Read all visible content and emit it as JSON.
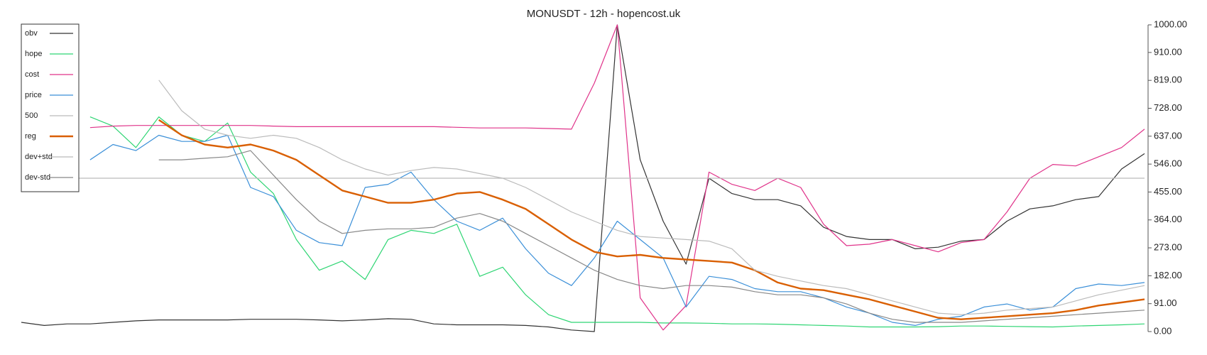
{
  "chart_data": {
    "type": "line",
    "title": "MONUSDT - 12h - hopencost.uk",
    "ylim": [
      0,
      1000
    ],
    "yticks": [
      {
        "value": 0,
        "label": "0.00"
      },
      {
        "value": 91,
        "label": "91.00"
      },
      {
        "value": 182,
        "label": "182.00"
      },
      {
        "value": 273,
        "label": "273.00"
      },
      {
        "value": 364,
        "label": "364.00"
      },
      {
        "value": 455,
        "label": "455.00"
      },
      {
        "value": 546,
        "label": "546.00"
      },
      {
        "value": 637,
        "label": "637.00"
      },
      {
        "value": 728,
        "label": "728.00"
      },
      {
        "value": 819,
        "label": "819.00"
      },
      {
        "value": 910,
        "label": "910.00"
      },
      {
        "value": 1000,
        "label": "1000.00"
      }
    ],
    "legend": "upper left",
    "series": [
      {
        "name": "obv",
        "color": "#333333",
        "values": [
          30,
          20,
          25,
          25,
          30,
          35,
          38,
          38,
          38,
          38,
          40,
          40,
          40,
          38,
          35,
          38,
          42,
          40,
          25,
          22,
          22,
          22,
          20,
          15,
          5,
          0,
          1000,
          560,
          360,
          220,
          500,
          450,
          430,
          430,
          410,
          340,
          310,
          300,
          300,
          270,
          275,
          295,
          300,
          360,
          400,
          410,
          430,
          440,
          530,
          580
        ]
      },
      {
        "name": "hope",
        "color": "#2ed573",
        "values": [
          null,
          null,
          null,
          700,
          670,
          600,
          700,
          640,
          620,
          680,
          520,
          450,
          300,
          200,
          230,
          170,
          300,
          330,
          320,
          350,
          180,
          210,
          120,
          55,
          30,
          30,
          30,
          30,
          28,
          28,
          27,
          25,
          25,
          24,
          22,
          20,
          18,
          15,
          15,
          15,
          16,
          18,
          18,
          17,
          16,
          15,
          18,
          20,
          22,
          25
        ]
      },
      {
        "name": "cost",
        "color": "#e0338a",
        "values": [
          null,
          null,
          null,
          665,
          670,
          672,
          672,
          672,
          672,
          672,
          672,
          670,
          668,
          668,
          668,
          668,
          668,
          668,
          668,
          666,
          664,
          664,
          664,
          662,
          660,
          810,
          1000,
          110,
          5,
          85,
          520,
          480,
          460,
          500,
          470,
          350,
          280,
          285,
          300,
          280,
          260,
          290,
          300,
          390,
          500,
          545,
          540,
          570,
          600,
          660
        ]
      },
      {
        "name": "price",
        "color": "#3a8fd8",
        "values": [
          null,
          null,
          null,
          560,
          610,
          590,
          640,
          620,
          620,
          640,
          470,
          440,
          330,
          290,
          280,
          470,
          480,
          520,
          430,
          360,
          330,
          370,
          270,
          190,
          150,
          240,
          360,
          300,
          240,
          80,
          180,
          170,
          140,
          130,
          130,
          110,
          80,
          60,
          30,
          20,
          40,
          50,
          80,
          90,
          70,
          80,
          140,
          155,
          150,
          160
        ]
      },
      {
        "name": "500",
        "color": "#bbbbbb",
        "values": [
          500,
          500,
          500,
          500,
          500,
          500,
          500,
          500,
          500,
          500,
          500,
          500,
          500,
          500,
          500,
          500,
          500,
          500,
          500,
          500,
          500,
          500,
          500,
          500,
          500,
          500,
          500,
          500,
          500,
          500,
          500,
          500,
          500,
          500,
          500,
          500,
          500,
          500,
          500,
          500,
          500,
          500,
          500,
          500,
          500,
          500,
          500,
          500,
          500,
          500
        ]
      },
      {
        "name": "reg",
        "color": "#d95f02",
        "values": [
          null,
          null,
          null,
          null,
          null,
          null,
          690,
          640,
          610,
          600,
          610,
          590,
          560,
          510,
          460,
          440,
          420,
          420,
          430,
          450,
          455,
          430,
          400,
          350,
          300,
          260,
          245,
          250,
          240,
          235,
          230,
          225,
          200,
          160,
          140,
          135,
          120,
          105,
          85,
          65,
          45,
          40,
          45,
          50,
          55,
          60,
          70,
          85,
          95,
          105
        ]
      },
      {
        "name": "dev+std",
        "color": "#bbbbbb",
        "values": [
          null,
          null,
          null,
          null,
          null,
          null,
          820,
          720,
          660,
          640,
          630,
          640,
          630,
          600,
          560,
          530,
          510,
          525,
          535,
          530,
          515,
          500,
          470,
          430,
          390,
          360,
          330,
          310,
          305,
          300,
          295,
          270,
          200,
          180,
          165,
          150,
          140,
          120,
          100,
          80,
          60,
          55,
          60,
          70,
          75,
          80,
          100,
          120,
          135,
          150
        ]
      },
      {
        "name": "dev-std",
        "color": "#888888",
        "values": [
          null,
          null,
          null,
          null,
          null,
          null,
          560,
          560,
          565,
          570,
          590,
          510,
          430,
          360,
          320,
          330,
          335,
          335,
          340,
          370,
          385,
          360,
          320,
          280,
          240,
          200,
          170,
          150,
          140,
          150,
          150,
          145,
          130,
          120,
          120,
          110,
          90,
          60,
          40,
          30,
          30,
          30,
          35,
          40,
          45,
          50,
          55,
          60,
          65,
          70
        ]
      }
    ]
  }
}
